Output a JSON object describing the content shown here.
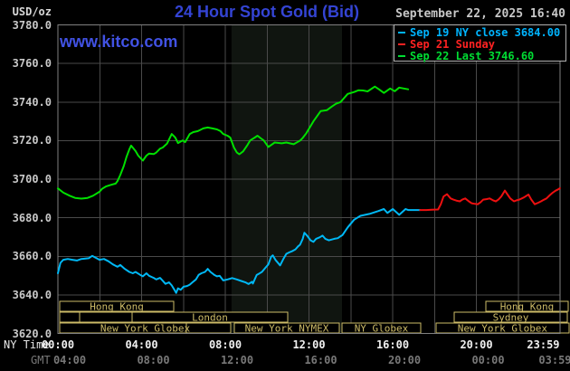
{
  "header": {
    "unit": "USD/oz",
    "title": "24 Hour Spot Gold (Bid)",
    "date": "September 22, 2025 16:40",
    "watermark": "www.kitco.com"
  },
  "legend": {
    "items": [
      {
        "label": "Sep 19 NY close 3684.00",
        "color": "#00b4ff"
      },
      {
        "label": "Sep 21 Sunday",
        "color": "#ff2222"
      },
      {
        "label": "Sep 22 Last 3746.60",
        "color": "#00dd33"
      }
    ]
  },
  "colors": {
    "background": "#000000",
    "frame": "#808080",
    "grid": "#4a4a4a",
    "title_blue": "#3444d4",
    "watermark_blue": "#4152e4",
    "date_gray": "#c8c8c8",
    "axis_label_gray": "#c8c8c8",
    "ny_time_white": "#f0f0f0",
    "gmt_gray": "#787878",
    "session_tan": "#cdbb67",
    "highlight_band": "#101510"
  },
  "chart_data": {
    "type": "line",
    "title": "24 Hour Spot Gold (Bid)",
    "ylabel": "USD/oz",
    "xlim_hours": [
      0,
      24
    ],
    "ylim": [
      3620,
      3780
    ],
    "yticks": [
      3780,
      3760,
      3740,
      3720,
      3700,
      3680,
      3660,
      3640,
      3620
    ],
    "x_axis_rows": {
      "ny_label": "NY Time",
      "gmt_label": "GMT"
    },
    "xticks": [
      {
        "t": 0,
        "ny": "00:00",
        "gmt": "04:00"
      },
      {
        "t": 4,
        "ny": "04:00",
        "gmt": "08:00"
      },
      {
        "t": 8,
        "ny": "08:00",
        "gmt": "12:00"
      },
      {
        "t": 12,
        "ny": "12:00",
        "gmt": "16:00"
      },
      {
        "t": 16,
        "ny": "16:00",
        "gmt": "20:00"
      },
      {
        "t": 20,
        "ny": "20:00",
        "gmt": "00:00"
      },
      {
        "t": 23.98,
        "ny": "23:59",
        "gmt": "03:59",
        "align": "right"
      }
    ],
    "grid_x_step_hours": 2,
    "highlight_band": {
      "t0": 8.3,
      "t1": 13.58
    },
    "series": [
      {
        "name": "Sep 19 NY close",
        "close_value": 3684.0,
        "color": "#00b8f5",
        "points": [
          [
            0,
            3651.2
          ],
          [
            0.12,
            3656.6
          ],
          [
            0.26,
            3658.2
          ],
          [
            0.47,
            3658.6
          ],
          [
            0.69,
            3658.2
          ],
          [
            0.91,
            3657.8
          ],
          [
            1.12,
            3658.6
          ],
          [
            1.47,
            3659
          ],
          [
            1.64,
            3660.2
          ],
          [
            1.99,
            3658.2
          ],
          [
            2.2,
            3658.6
          ],
          [
            2.42,
            3657.4
          ],
          [
            2.63,
            3655.8
          ],
          [
            2.85,
            3654.6
          ],
          [
            2.98,
            3655.5
          ],
          [
            3.19,
            3653.5
          ],
          [
            3.41,
            3651.9
          ],
          [
            3.58,
            3651.2
          ],
          [
            3.71,
            3651.9
          ],
          [
            3.93,
            3650.4
          ],
          [
            4.06,
            3649.6
          ],
          [
            4.23,
            3651.2
          ],
          [
            4.36,
            3649.9
          ],
          [
            4.58,
            3648.8
          ],
          [
            4.7,
            3648
          ],
          [
            4.88,
            3648.8
          ],
          [
            5.01,
            3647.3
          ],
          [
            5.14,
            3645.7
          ],
          [
            5.31,
            3646.5
          ],
          [
            5.44,
            3644.9
          ],
          [
            5.57,
            3642.6
          ],
          [
            5.65,
            3641
          ],
          [
            5.74,
            3643.4
          ],
          [
            5.87,
            3642.6
          ],
          [
            6,
            3644.2
          ],
          [
            6.17,
            3644.6
          ],
          [
            6.3,
            3645.3
          ],
          [
            6.43,
            3646.5
          ],
          [
            6.6,
            3648
          ],
          [
            6.73,
            3650.4
          ],
          [
            6.86,
            3651.2
          ],
          [
            7.03,
            3651.9
          ],
          [
            7.16,
            3653.5
          ],
          [
            7.29,
            3651.9
          ],
          [
            7.47,
            3650.4
          ],
          [
            7.6,
            3649.6
          ],
          [
            7.73,
            3649.9
          ],
          [
            7.9,
            3647.5
          ],
          [
            8.11,
            3648
          ],
          [
            8.33,
            3648.7
          ],
          [
            8.55,
            3648
          ],
          [
            8.76,
            3647.2
          ],
          [
            8.98,
            3646.4
          ],
          [
            9.11,
            3645.6
          ],
          [
            9.28,
            3646.8
          ],
          [
            9.32,
            3645.9
          ],
          [
            9.5,
            3650.3
          ],
          [
            9.63,
            3651.1
          ],
          [
            9.75,
            3651.9
          ],
          [
            9.93,
            3654.2
          ],
          [
            10.06,
            3655.8
          ],
          [
            10.19,
            3659.7
          ],
          [
            10.27,
            3660.5
          ],
          [
            10.4,
            3658.1
          ],
          [
            10.62,
            3655.3
          ],
          [
            10.79,
            3658.9
          ],
          [
            10.92,
            3661.3
          ],
          [
            11.05,
            3662
          ],
          [
            11.22,
            3662.8
          ],
          [
            11.35,
            3663.6
          ],
          [
            11.48,
            3665.2
          ],
          [
            11.57,
            3666
          ],
          [
            11.7,
            3669.1
          ],
          [
            11.78,
            3672.2
          ],
          [
            11.91,
            3670.7
          ],
          [
            12.08,
            3668.3
          ],
          [
            12.21,
            3667.5
          ],
          [
            12.34,
            3669.1
          ],
          [
            12.52,
            3669.9
          ],
          [
            12.65,
            3670.7
          ],
          [
            12.78,
            3669.1
          ],
          [
            12.95,
            3668.3
          ],
          [
            13.21,
            3669.1
          ],
          [
            13.38,
            3669.4
          ],
          [
            13.51,
            3670.4
          ],
          [
            13.6,
            3671
          ],
          [
            13.85,
            3675
          ],
          [
            14.16,
            3679
          ],
          [
            14.46,
            3681
          ],
          [
            14.89,
            3682
          ],
          [
            15.32,
            3683.5
          ],
          [
            15.58,
            3684.5
          ],
          [
            15.75,
            3682.5
          ],
          [
            16.01,
            3684.5
          ],
          [
            16.31,
            3681.5
          ],
          [
            16.62,
            3684.5
          ],
          [
            16.74,
            3684
          ],
          [
            17.31,
            3684
          ]
        ]
      },
      {
        "name": "Sep 21 Sunday",
        "color": "#ee1010",
        "points": [
          [
            17.31,
            3684
          ],
          [
            17.61,
            3684
          ],
          [
            17.87,
            3684.2
          ],
          [
            18.17,
            3684.3
          ],
          [
            18.3,
            3687
          ],
          [
            18.43,
            3691
          ],
          [
            18.6,
            3692.2
          ],
          [
            18.77,
            3690
          ],
          [
            18.9,
            3689.4
          ],
          [
            19.08,
            3688.8
          ],
          [
            19.21,
            3688.5
          ],
          [
            19.34,
            3689.5
          ],
          [
            19.47,
            3690
          ],
          [
            19.64,
            3688.5
          ],
          [
            19.77,
            3687.5
          ],
          [
            19.94,
            3687.2
          ],
          [
            20.07,
            3687
          ],
          [
            20.2,
            3688
          ],
          [
            20.33,
            3689.4
          ],
          [
            20.5,
            3689.7
          ],
          [
            20.63,
            3690
          ],
          [
            20.8,
            3689
          ],
          [
            20.93,
            3688.5
          ],
          [
            21.06,
            3689.5
          ],
          [
            21.19,
            3691
          ],
          [
            21.36,
            3694.1
          ],
          [
            21.49,
            3692
          ],
          [
            21.62,
            3690
          ],
          [
            21.8,
            3688.5
          ],
          [
            21.92,
            3689
          ],
          [
            22.05,
            3689.4
          ],
          [
            22.27,
            3690.5
          ],
          [
            22.49,
            3692
          ],
          [
            22.62,
            3689.5
          ],
          [
            22.79,
            3687
          ],
          [
            22.96,
            3687.8
          ],
          [
            23.09,
            3688.5
          ],
          [
            23.22,
            3689.3
          ],
          [
            23.35,
            3690
          ],
          [
            23.52,
            3691.8
          ],
          [
            23.65,
            3693
          ],
          [
            23.78,
            3694
          ],
          [
            23.91,
            3694.7
          ],
          [
            23.99,
            3695.3
          ]
        ]
      },
      {
        "name": "Sep 22 Last",
        "last_value": 3746.6,
        "color": "#00e000",
        "points": [
          [
            0,
            3695.2
          ],
          [
            0.26,
            3693
          ],
          [
            0.56,
            3691.4
          ],
          [
            0.82,
            3690.3
          ],
          [
            1.12,
            3689.9
          ],
          [
            1.42,
            3690.3
          ],
          [
            1.68,
            3691.4
          ],
          [
            1.99,
            3693.5
          ],
          [
            2.11,
            3695
          ],
          [
            2.29,
            3696.2
          ],
          [
            2.55,
            3697.1
          ],
          [
            2.76,
            3697.7
          ],
          [
            2.85,
            3699
          ],
          [
            2.98,
            3702.1
          ],
          [
            3.15,
            3706.8
          ],
          [
            3.28,
            3711.5
          ],
          [
            3.41,
            3715.4
          ],
          [
            3.5,
            3717.4
          ],
          [
            3.71,
            3714.6
          ],
          [
            3.84,
            3712.2
          ],
          [
            4.06,
            3709.6
          ],
          [
            4.23,
            3712.2
          ],
          [
            4.36,
            3713.3
          ],
          [
            4.58,
            3713
          ],
          [
            4.7,
            3713.8
          ],
          [
            4.88,
            3715.8
          ],
          [
            5.01,
            3716.4
          ],
          [
            5.22,
            3718.5
          ],
          [
            5.44,
            3723.4
          ],
          [
            5.61,
            3721.6
          ],
          [
            5.74,
            3718.7
          ],
          [
            5.96,
            3720.1
          ],
          [
            6.08,
            3719.2
          ],
          [
            6.3,
            3723.4
          ],
          [
            6.47,
            3724.4
          ],
          [
            6.69,
            3724.9
          ],
          [
            6.95,
            3726.3
          ],
          [
            7.16,
            3726.8
          ],
          [
            7.38,
            3726.3
          ],
          [
            7.6,
            3725.8
          ],
          [
            7.77,
            3724.9
          ],
          [
            7.9,
            3723.4
          ],
          [
            8.11,
            3722.5
          ],
          [
            8.24,
            3721.6
          ],
          [
            8.42,
            3716.3
          ],
          [
            8.55,
            3713.9
          ],
          [
            8.67,
            3712.9
          ],
          [
            8.85,
            3714.4
          ],
          [
            9.06,
            3717.7
          ],
          [
            9.19,
            3720.1
          ],
          [
            9.41,
            3721.6
          ],
          [
            9.54,
            3722.5
          ],
          [
            9.71,
            3721.1
          ],
          [
            9.84,
            3720.1
          ],
          [
            10.06,
            3716.7
          ],
          [
            10.36,
            3719
          ],
          [
            10.7,
            3718.6
          ],
          [
            10.92,
            3719
          ],
          [
            11.27,
            3718.1
          ],
          [
            11.57,
            3720
          ],
          [
            11.7,
            3721.4
          ],
          [
            11.87,
            3723.8
          ],
          [
            12.21,
            3730
          ],
          [
            12.56,
            3735.3
          ],
          [
            12.86,
            3735.8
          ],
          [
            13.08,
            3737.6
          ],
          [
            13.29,
            3739.1
          ],
          [
            13.51,
            3740
          ],
          [
            13.85,
            3744.2
          ],
          [
            14.16,
            3745.2
          ],
          [
            14.37,
            3746.1
          ],
          [
            14.59,
            3746
          ],
          [
            14.8,
            3745.5
          ],
          [
            15.15,
            3748
          ],
          [
            15.36,
            3746.5
          ],
          [
            15.58,
            3744.7
          ],
          [
            15.88,
            3747
          ],
          [
            16.1,
            3745.6
          ],
          [
            16.31,
            3747.5
          ],
          [
            16.53,
            3747
          ],
          [
            16.74,
            3746.6
          ]
        ]
      }
    ],
    "sessions": {
      "rows": [
        [
          {
            "label": "Hong Kong",
            "t0": 0.09,
            "t1": 5.54
          },
          {
            "label": "Hong Kong",
            "t0": 20.45,
            "t1": 24.39,
            "dividers": [
              22.0
            ]
          }
        ],
        [
          {
            "label": "",
            "t0": 0.09,
            "t1": 1.04
          },
          {
            "label": "",
            "t0": 1.04,
            "t1": 3.55
          },
          {
            "label": "London",
            "t0": 3.55,
            "t1": 10.98
          },
          {
            "label": "Sydney",
            "t0": 18.94,
            "t1": 24.35
          }
        ],
        [
          {
            "label": "New York Globex",
            "t0": 0.09,
            "t1": 8.26,
            "dividers": [
              6.14
            ]
          },
          {
            "label": "New York NYMEX",
            "t0": 8.43,
            "t1": 13.45
          },
          {
            "label": "NY Globex",
            "t0": 13.58,
            "t1": 17.34
          },
          {
            "label": "New York Globex",
            "t0": 18.07,
            "t1": 24.43
          }
        ]
      ]
    }
  }
}
